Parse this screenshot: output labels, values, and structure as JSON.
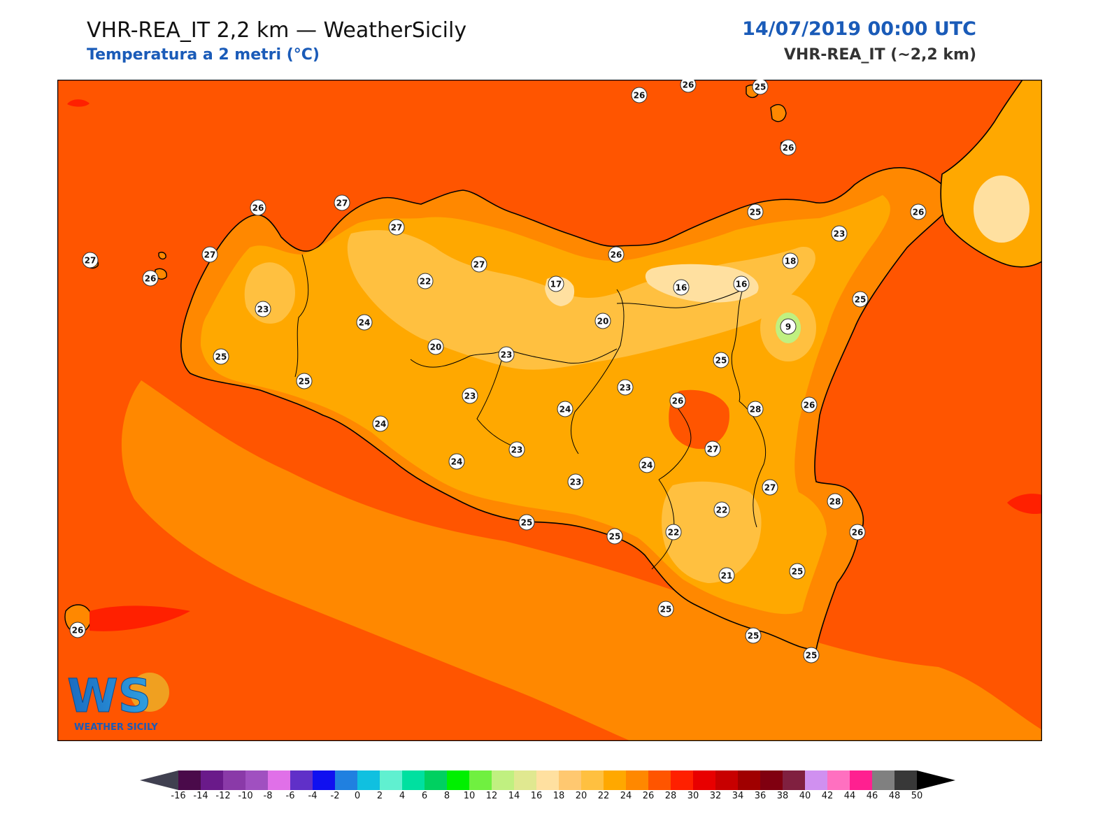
{
  "header": {
    "title": "VHR-REA_IT 2,2 km — WeatherSicily",
    "subtitle": "Temperatura a 2 metri (°C)",
    "datetime": "14/07/2019 00:00 UTC",
    "model": "VHR-REA_IT (~2,2 km)"
  },
  "logo": {
    "initials": "WS",
    "name": "WEATHER SICILY"
  },
  "stations": [
    {
      "id": "s01",
      "value": "26"
    },
    {
      "id": "s02",
      "value": "26"
    },
    {
      "id": "s03",
      "value": "25"
    },
    {
      "id": "s04",
      "value": "26"
    },
    {
      "id": "s05",
      "value": "26"
    },
    {
      "id": "s06",
      "value": "27"
    },
    {
      "id": "s07",
      "value": "27"
    },
    {
      "id": "s08",
      "value": "27"
    },
    {
      "id": "s09",
      "value": "27"
    },
    {
      "id": "s10",
      "value": "26"
    },
    {
      "id": "s11",
      "value": "27"
    },
    {
      "id": "s12",
      "value": "23"
    },
    {
      "id": "s13",
      "value": "25"
    },
    {
      "id": "s14",
      "value": "24"
    },
    {
      "id": "s15",
      "value": "22"
    },
    {
      "id": "s16",
      "value": "17"
    },
    {
      "id": "s17",
      "value": "20"
    },
    {
      "id": "s18",
      "value": "20"
    },
    {
      "id": "s19",
      "value": "23"
    },
    {
      "id": "s20",
      "value": "25"
    },
    {
      "id": "s21",
      "value": "24"
    },
    {
      "id": "s22",
      "value": "23"
    },
    {
      "id": "s23",
      "value": "24"
    },
    {
      "id": "s24",
      "value": "23"
    },
    {
      "id": "s25",
      "value": "24"
    },
    {
      "id": "s26",
      "value": "23"
    },
    {
      "id": "s27",
      "value": "25"
    },
    {
      "id": "s28",
      "value": "25"
    },
    {
      "id": "s29",
      "value": "26"
    },
    {
      "id": "s30",
      "value": "25"
    },
    {
      "id": "s31",
      "value": "26"
    },
    {
      "id": "s32",
      "value": "23"
    },
    {
      "id": "s33",
      "value": "18"
    },
    {
      "id": "s34",
      "value": "16"
    },
    {
      "id": "s35",
      "value": "16"
    },
    {
      "id": "s36",
      "value": "25"
    },
    {
      "id": "s37",
      "value": "9"
    },
    {
      "id": "s38",
      "value": "25"
    },
    {
      "id": "s39",
      "value": "23"
    },
    {
      "id": "s40",
      "value": "26"
    },
    {
      "id": "s41",
      "value": "28"
    },
    {
      "id": "s42",
      "value": "26"
    },
    {
      "id": "s43",
      "value": "27"
    },
    {
      "id": "s44",
      "value": "24"
    },
    {
      "id": "s45",
      "value": "27"
    },
    {
      "id": "s46",
      "value": "28"
    },
    {
      "id": "s47",
      "value": "22"
    },
    {
      "id": "s48",
      "value": "22"
    },
    {
      "id": "s49",
      "value": "26"
    },
    {
      "id": "s50",
      "value": "21"
    },
    {
      "id": "s51",
      "value": "25"
    },
    {
      "id": "s52",
      "value": "25"
    },
    {
      "id": "s53",
      "value": "25"
    },
    {
      "id": "s54",
      "value": "25"
    },
    {
      "id": "s55",
      "value": "26"
    }
  ],
  "colorbar": {
    "labels": [
      "-16",
      "-14",
      "-12",
      "-10",
      "-8",
      "-6",
      "-4",
      "-2",
      "0",
      "2",
      "4",
      "6",
      "8",
      "10",
      "12",
      "14",
      "16",
      "18",
      "20",
      "22",
      "24",
      "26",
      "28",
      "30",
      "32",
      "34",
      "36",
      "38",
      "40",
      "42",
      "44",
      "46",
      "48",
      "50"
    ],
    "colors": [
      "#4a0a4a",
      "#6a1a8a",
      "#8a3aa8",
      "#a050c0",
      "#e070e8",
      "#6030c8",
      "#1010f0",
      "#2080e0",
      "#10c0e0",
      "#60f0d0",
      "#00e0a0",
      "#00d060",
      "#00f000",
      "#70f040",
      "#c0f080",
      "#e0e890",
      "#ffe0a0",
      "#ffc870",
      "#ffc040",
      "#ffa800",
      "#ff8800",
      "#ff5500",
      "#ff2000",
      "#e80000",
      "#c80000",
      "#a00000",
      "#800010",
      "#802040",
      "#d090f0",
      "#ff70c0",
      "#ff2090",
      "#808080",
      "#383838"
    ],
    "under_color": "#404050",
    "over_color": "#000000"
  },
  "map_colors": {
    "sea": "#ff5500",
    "coast_band": "#ff8800",
    "interior": "#ffa800",
    "high": "#ffc040",
    "peak": "#ffe0a0",
    "cold": "#c0f080",
    "hot": "#ff2000"
  }
}
